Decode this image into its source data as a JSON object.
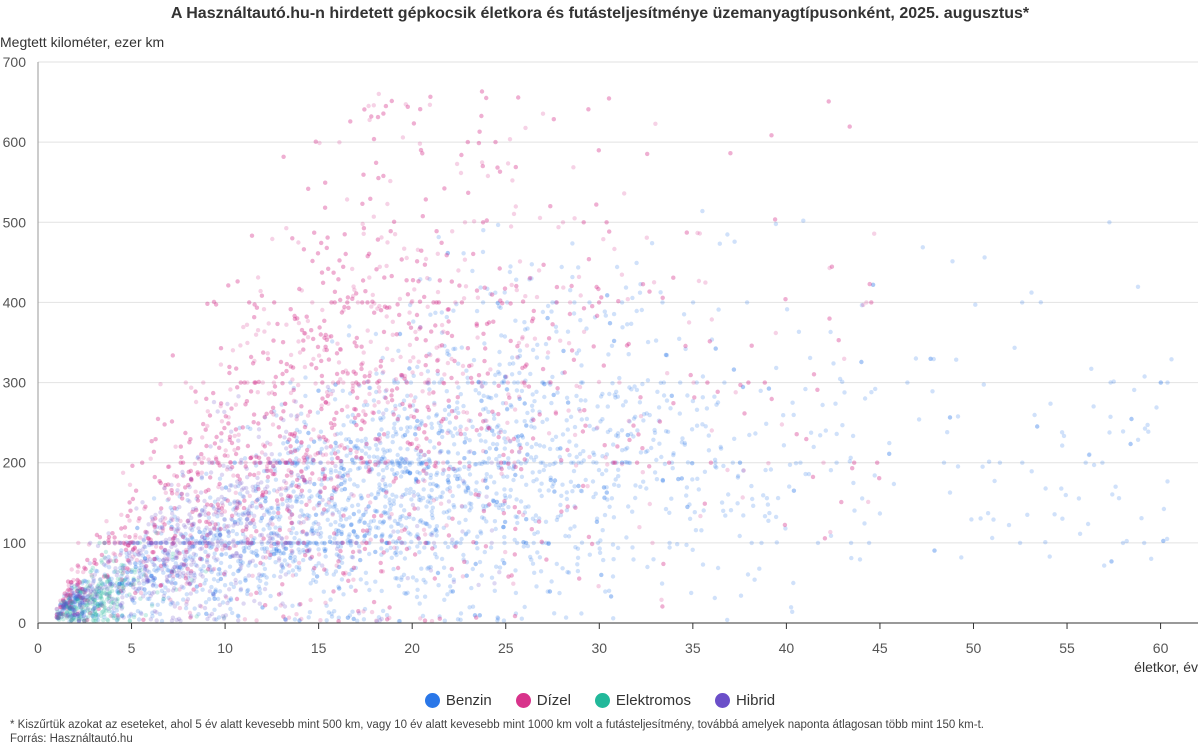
{
  "chart_data": {
    "type": "scatter",
    "title": "A Használtautó.hu-n hirdetett gépkocsik életkora és futásteljesítménye üzemanyagtípusonként, 2025. augusztus*",
    "xlabel": "életkor, év",
    "ylabel": "Megtett kilométer, ezer km",
    "xlim": [
      0,
      62
    ],
    "ylim": [
      0,
      700
    ],
    "x_ticks": [
      0,
      5,
      10,
      15,
      20,
      25,
      30,
      35,
      40,
      45,
      50,
      55,
      60
    ],
    "y_ticks": [
      0,
      100,
      200,
      300,
      400,
      500,
      600,
      700
    ],
    "grid": "horizontal",
    "legend_position": "bottom-center",
    "series": [
      {
        "name": "Benzin",
        "color": "#2a77e8",
        "x_range": [
          1,
          61
        ],
        "center_x": 18,
        "center_y": 130,
        "peak_x": 25,
        "peak_y": 200,
        "max_y": 665
      },
      {
        "name": "Dízel",
        "color": "#d8338b",
        "x_range": [
          1,
          45
        ],
        "center_x": 15,
        "center_y": 240,
        "peak_x": 18,
        "peak_y": 300,
        "max_y": 665
      },
      {
        "name": "Elektromos",
        "color": "#22b89a",
        "x_range": [
          1,
          10
        ],
        "center_x": 3,
        "center_y": 25,
        "peak_x": 5,
        "peak_y": 40,
        "max_y": 150
      },
      {
        "name": "Hibrid",
        "color": "#6b4fc9",
        "x_range": [
          1,
          25
        ],
        "center_x": 8,
        "center_y": 80,
        "peak_x": 12,
        "peak_y": 120,
        "max_y": 300
      }
    ]
  },
  "footnote": {
    "note": "* Kiszűrtük azokat az eseteket, ahol 5 év alatt kevesebb mint 500 km, vagy 10 év alatt kevesebb mint 1000 km volt a futásteljesítmény, továbbá amelyek naponta átlagosan több mint 150 km-t.",
    "source": "Forrás: Használtautó.hu"
  }
}
